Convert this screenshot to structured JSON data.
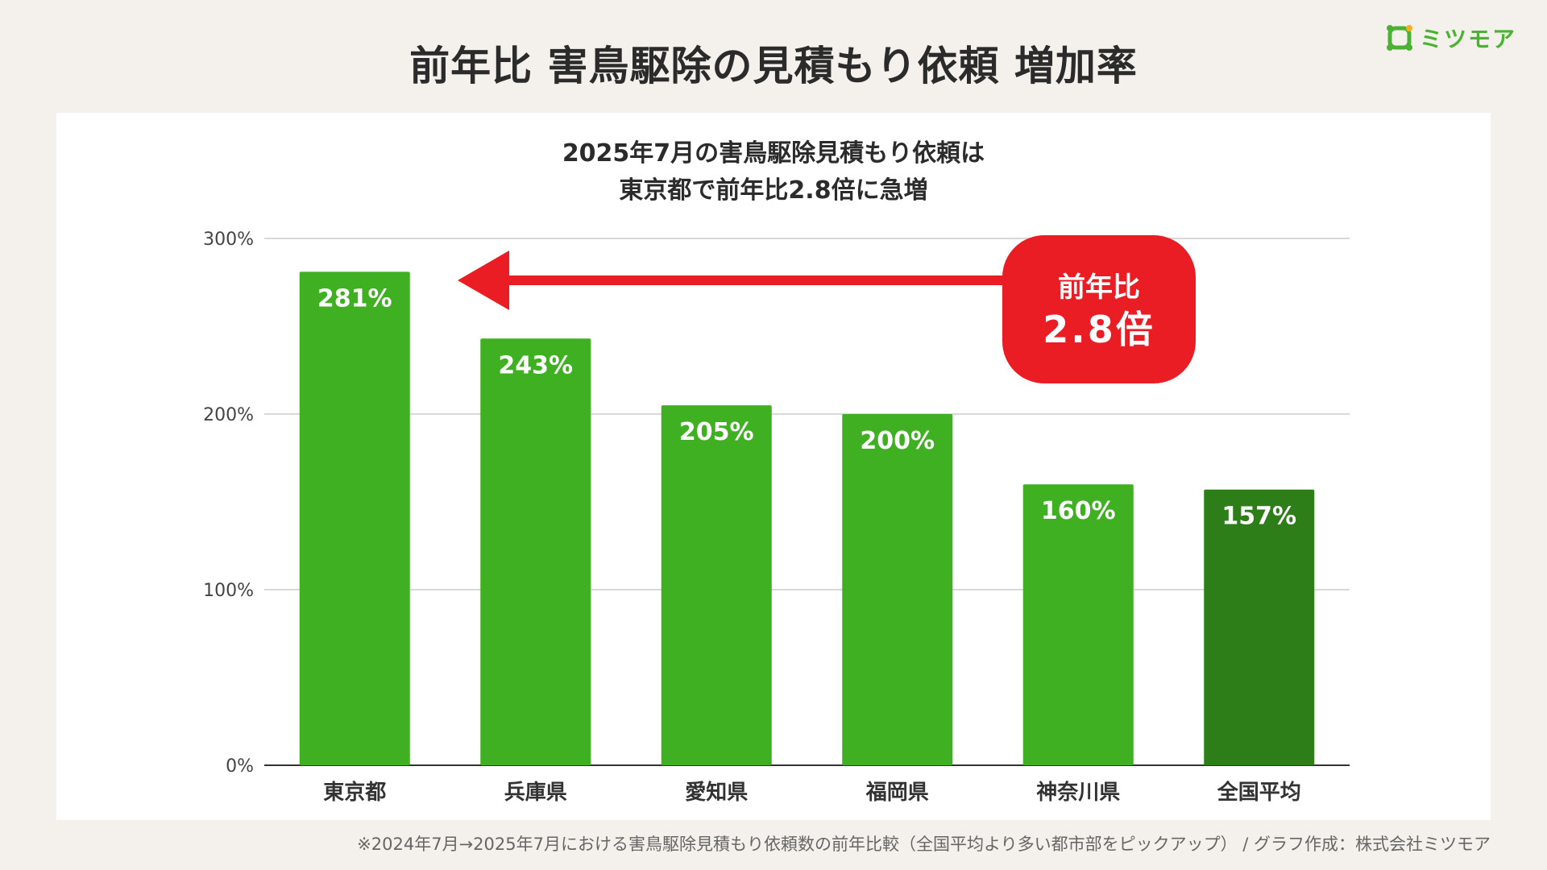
{
  "title": "前年比 害鳥駆除の見積もり依頼 増加率",
  "brand": {
    "name": "ミツモア",
    "logo_icon": "mitsumore-logo-icon",
    "color": "#4cb233"
  },
  "subtitle": {
    "line1": "2025年7月の害鳥駆除見積もり依頼は",
    "line2": "東京都で前年比2.8倍に急増"
  },
  "callout": {
    "line1": "前年比",
    "line2": "2.8倍",
    "color": "#ea1c24"
  },
  "footnote": "※2024年7月→2025年7月における害鳥駆除見積もり依頼数の前年比較（全国平均より多い都市部をピックアップ） / グラフ作成：株式会社ミツモア",
  "chart_data": {
    "type": "bar",
    "categories": [
      "東京都",
      "兵庫県",
      "愛知県",
      "福岡県",
      "神奈川県",
      "全国平均"
    ],
    "values": [
      281,
      243,
      205,
      200,
      160,
      157
    ],
    "value_labels": [
      "281%",
      "243%",
      "205%",
      "200%",
      "160%",
      "157%"
    ],
    "colors": [
      "#3fb021",
      "#3fb021",
      "#3fb021",
      "#3fb021",
      "#3fb021",
      "#2d7d18"
    ],
    "ylim": [
      0,
      300
    ],
    "yticks": [
      0,
      100,
      200,
      300
    ],
    "ytick_labels": [
      "0%",
      "100%",
      "200%",
      "300%"
    ],
    "grid": true,
    "xlabel": "",
    "ylabel": ""
  }
}
